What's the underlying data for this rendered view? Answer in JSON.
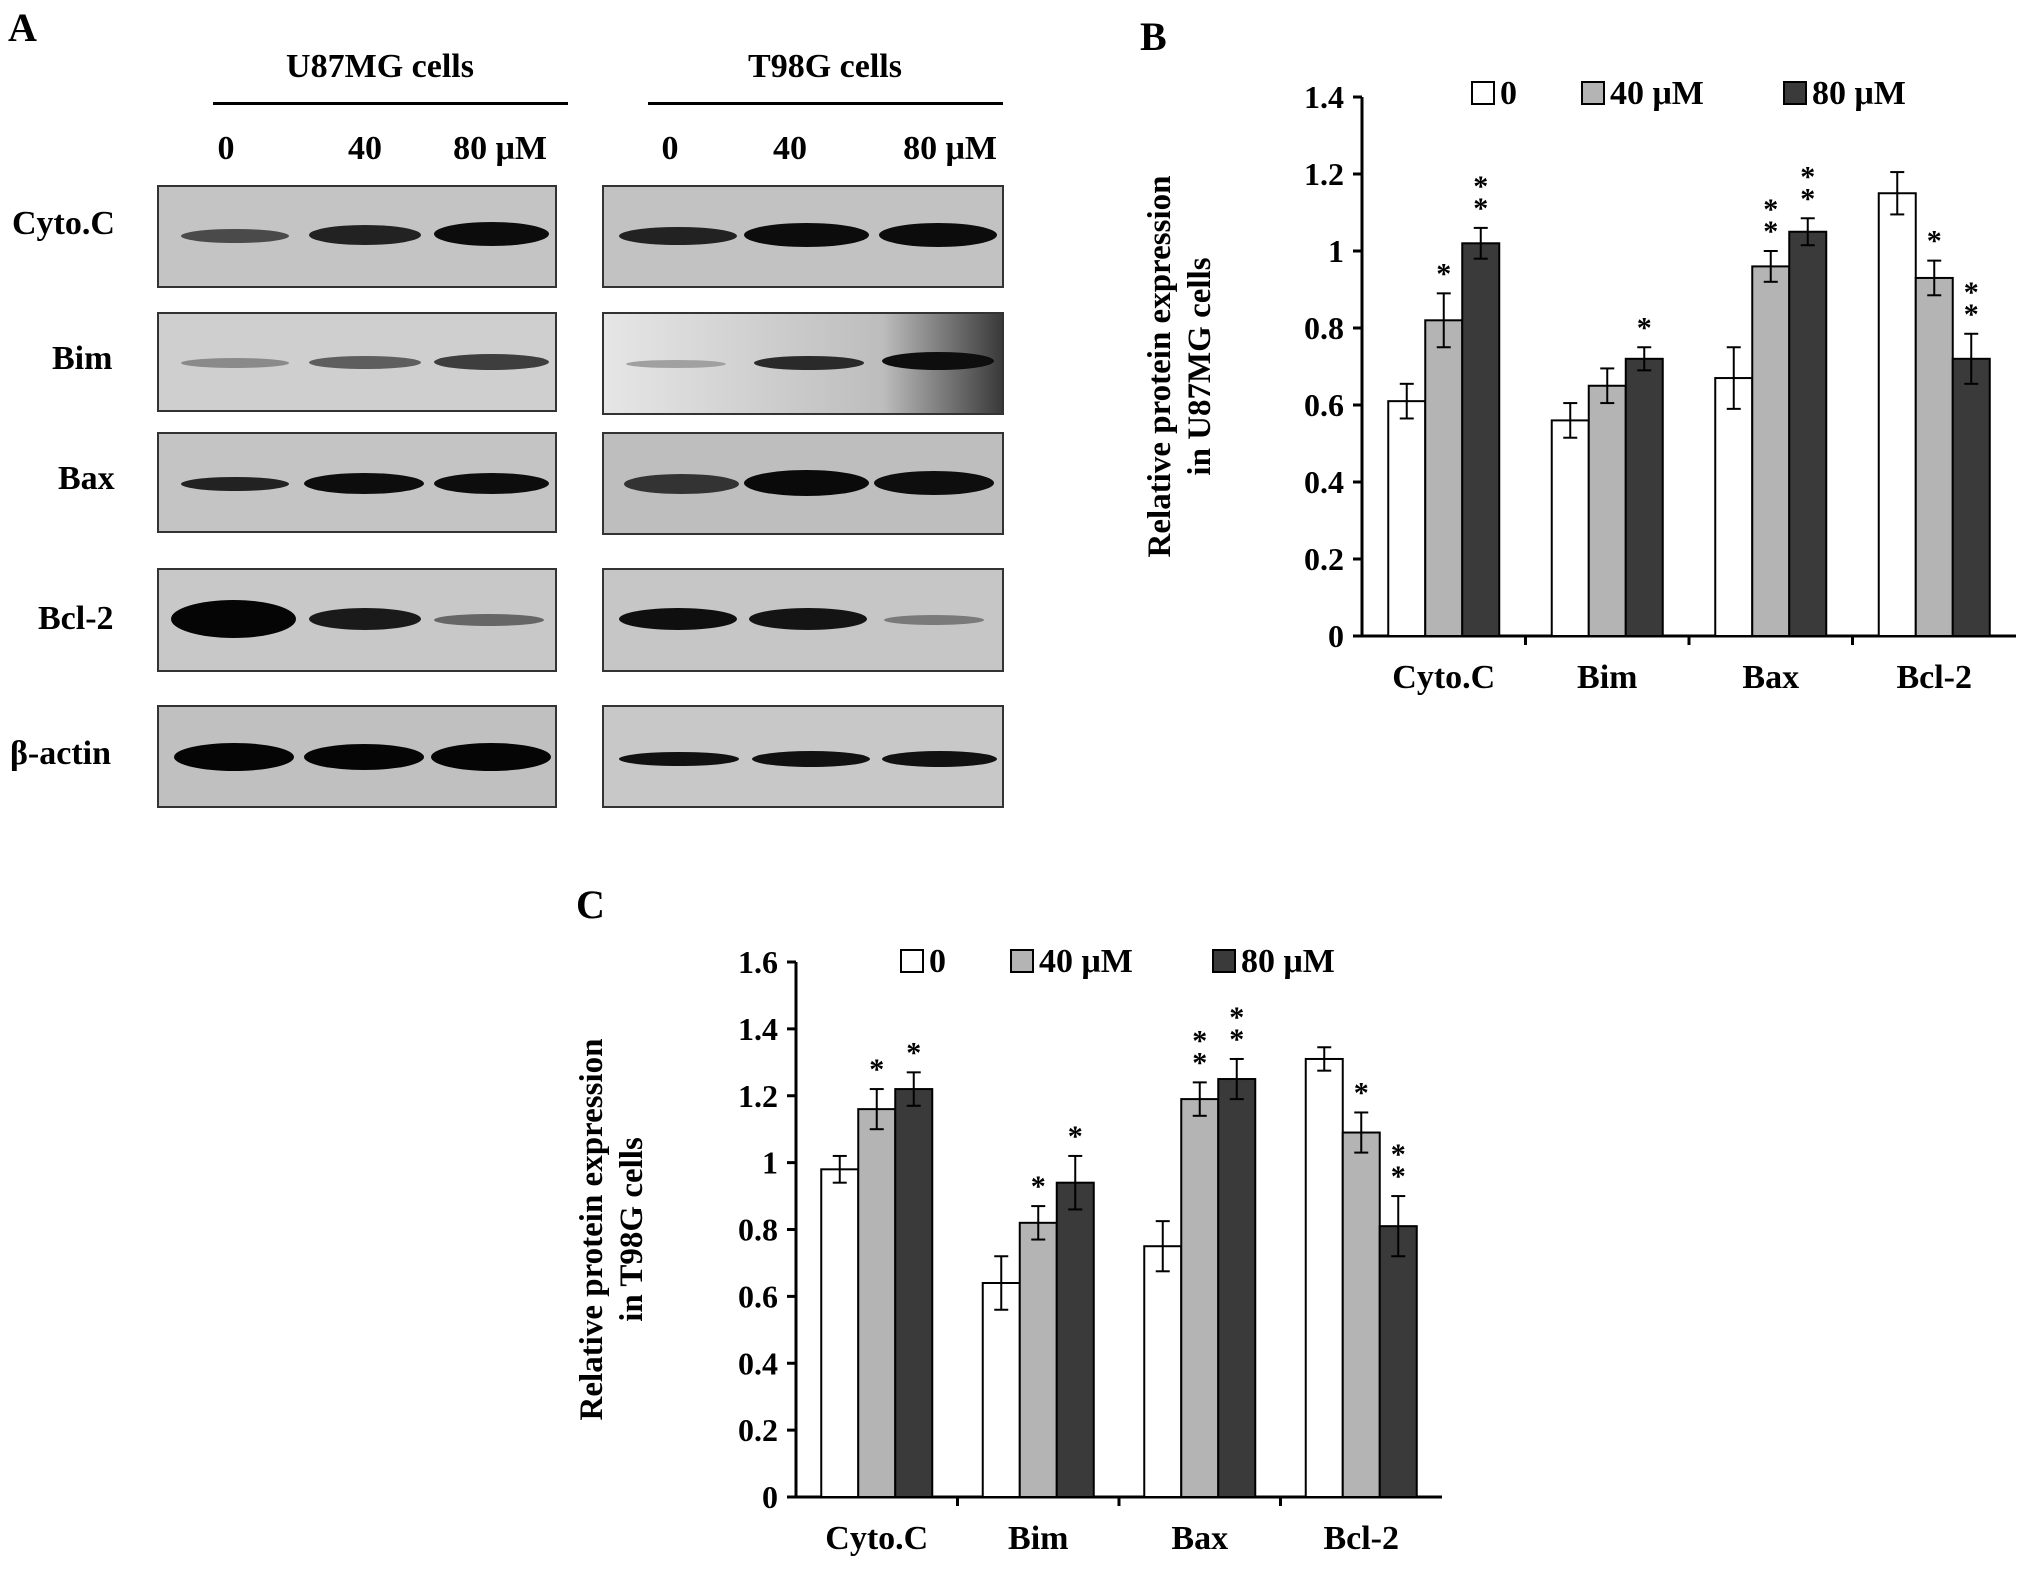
{
  "panel_a": {
    "letter": "A",
    "groups": [
      {
        "title": "U87MG cells",
        "lanes": [
          "0",
          "40",
          "80 μM"
        ]
      },
      {
        "title": "T98G cells",
        "lanes": [
          "0",
          "40",
          "80 μM"
        ]
      }
    ],
    "rows": [
      "Cyto.C",
      "Bim",
      "Bax",
      "Bcl-2",
      "β-actin"
    ]
  },
  "chart_data": [
    {
      "panel": "B",
      "type": "bar",
      "categories": [
        "Cyto.C",
        "Bim",
        "Bax",
        "Bcl-2"
      ],
      "series": [
        {
          "name": "0",
          "values": [
            0.61,
            0.56,
            0.67,
            1.15
          ],
          "errors": [
            0.045,
            0.045,
            0.08,
            0.055
          ],
          "color": "#ffffff",
          "sig": [
            "",
            "",
            "",
            ""
          ]
        },
        {
          "name": "40 μM",
          "values": [
            0.82,
            0.65,
            0.96,
            0.93
          ],
          "errors": [
            0.07,
            0.045,
            0.04,
            0.045
          ],
          "color": "#b4b4b4",
          "sig": [
            "*",
            "",
            "**",
            "*"
          ]
        },
        {
          "name": "80 μM",
          "values": [
            1.02,
            0.72,
            1.05,
            0.72
          ],
          "errors": [
            0.04,
            0.03,
            0.035,
            0.065
          ],
          "color": "#3a3a3a",
          "sig": [
            "**",
            "*",
            "**",
            "**"
          ]
        }
      ],
      "ylabel_lines": [
        "Relative  protein expression",
        "in U87MG cells"
      ],
      "ylim": [
        0,
        1.4
      ],
      "yticks": [
        "0",
        "0.2",
        "0.4",
        "0.6",
        "0.8",
        "1",
        "1.2",
        "1.4"
      ],
      "legend_position": "top"
    },
    {
      "panel": "C",
      "type": "bar",
      "categories": [
        "Cyto.C",
        "Bim",
        "Bax",
        "Bcl-2"
      ],
      "series": [
        {
          "name": "0",
          "values": [
            0.98,
            0.64,
            0.75,
            1.31
          ],
          "errors": [
            0.04,
            0.08,
            0.075,
            0.035
          ],
          "color": "#ffffff",
          "sig": [
            "",
            "",
            "",
            ""
          ]
        },
        {
          "name": "40 μM",
          "values": [
            1.16,
            0.82,
            1.19,
            1.09
          ],
          "errors": [
            0.06,
            0.05,
            0.05,
            0.06
          ],
          "color": "#b4b4b4",
          "sig": [
            "*",
            "*",
            "**",
            "*"
          ]
        },
        {
          "name": "80 μM",
          "values": [
            1.22,
            0.94,
            1.25,
            0.81
          ],
          "errors": [
            0.05,
            0.08,
            0.06,
            0.09
          ],
          "color": "#3a3a3a",
          "sig": [
            "*",
            "*",
            "**",
            "**"
          ]
        }
      ],
      "ylabel_lines": [
        "Relative  protein expression",
        "in T98G cells"
      ],
      "ylim": [
        0,
        1.6
      ],
      "yticks": [
        "0",
        "0.2",
        "0.4",
        "0.6",
        "0.8",
        "1",
        "1.2",
        "1.4",
        "1.6"
      ],
      "legend_position": "top"
    }
  ]
}
